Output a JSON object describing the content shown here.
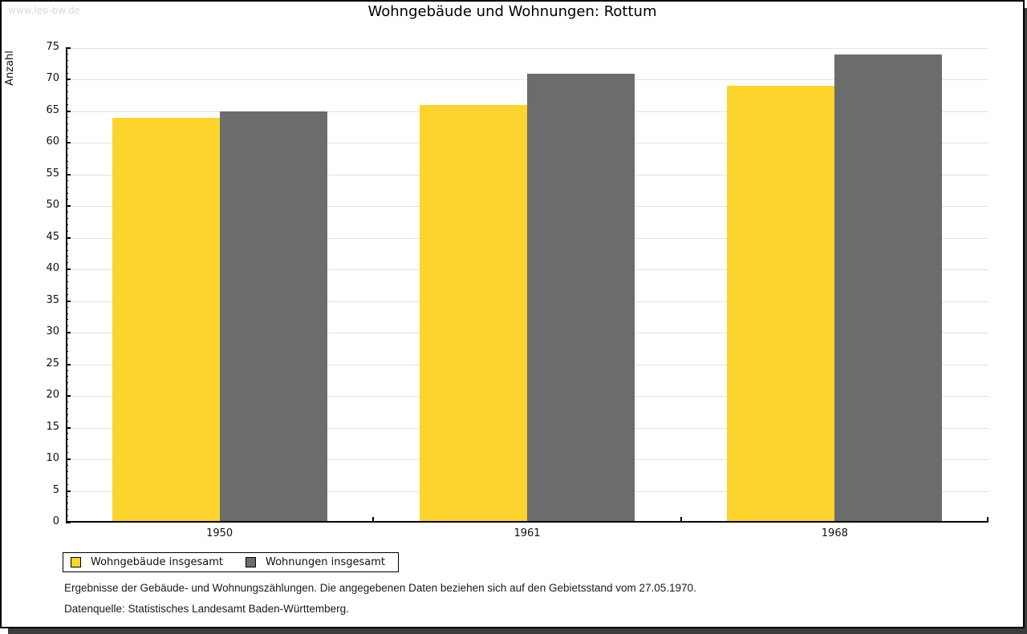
{
  "watermark": "www.leo-bw.de",
  "title": "Wohngebäude und Wohnungen: Rottum",
  "chart_data": {
    "type": "bar",
    "title": "Wohngebäude und Wohnungen: Rottum",
    "categories": [
      "1950",
      "1961",
      "1968"
    ],
    "series": [
      {
        "name": "Wohngebäude insgesamt",
        "color": "#fcd42d",
        "values": [
          64,
          66,
          69
        ]
      },
      {
        "name": "Wohnungen insgesamt",
        "color": "#6c6c6c",
        "values": [
          65,
          71,
          74
        ]
      }
    ],
    "xlabel": "",
    "ylabel": "Anzahl",
    "ylim": [
      0,
      75
    ],
    "ytick_step": 5,
    "minor_tick_step": 1,
    "grid": true,
    "gridline_color": "#e2e2e2",
    "legend_position": "bottom-left"
  },
  "footnotes": [
    "Ergebnisse der Gebäude- und Wohnungszählungen. Die angegebenen Daten beziehen sich auf den Gebietsstand vom 27.05.1970.",
    "Datenquelle: Statistisches Landesamt Baden-Württemberg."
  ]
}
